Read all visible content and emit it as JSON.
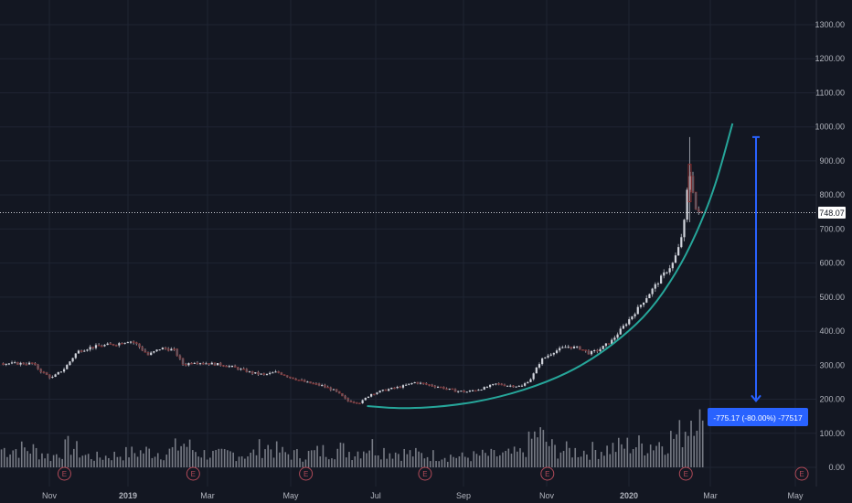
{
  "chart_data": {
    "type": "candlestick",
    "colors": {
      "background": "#131722",
      "grid": "#1f2433",
      "axis_text": "#b2b5be",
      "candle_up": "#d1d4dc",
      "candle_down": "#5d606b",
      "candle_wick": "#9598a1",
      "candle_down_edge": "#8b2b2b",
      "volume_bar": "#8a8d96",
      "curve": "#26a69a",
      "arrow": "#2962ff",
      "label_bg": "#2962ff",
      "last_price_line": "#c9cbd2",
      "earnings_marker": "#b04a58"
    },
    "y_axis": {
      "ticks": [
        "0.00",
        "100.00",
        "200.00",
        "300.00",
        "400.00",
        "500.00",
        "600.00",
        "700.00",
        "800.00",
        "900.00",
        "1000.00",
        "1100.00",
        "1200.00",
        "1300.00"
      ],
      "range": [
        0,
        1300
      ]
    },
    "x_axis": {
      "ticks": [
        "Nov",
        "2019",
        "Mar",
        "May",
        "Jul",
        "Sep",
        "Nov",
        "2020",
        "Mar",
        "May"
      ]
    },
    "last_price": "748.07",
    "last_price_value": 748.07,
    "measure_label": "-775.17 (-80.00%) -77517",
    "measure": {
      "from": 970,
      "to": 195
    },
    "parabolic_curve": [
      {
        "t": 10.4,
        "y": 180
      },
      {
        "t": 11.5,
        "y": 172
      },
      {
        "t": 13.0,
        "y": 180
      },
      {
        "t": 14.5,
        "y": 205
      },
      {
        "t": 16.0,
        "y": 250
      },
      {
        "t": 17.2,
        "y": 305
      },
      {
        "t": 18.3,
        "y": 380
      },
      {
        "t": 19.2,
        "y": 460
      },
      {
        "t": 20.0,
        "y": 570
      },
      {
        "t": 20.6,
        "y": 680
      },
      {
        "t": 21.2,
        "y": 820
      },
      {
        "t": 21.75,
        "y": 1010
      }
    ],
    "price_series": [
      {
        "t": 0.0,
        "p": 305
      },
      {
        "t": 0.3,
        "p": 280
      },
      {
        "t": 0.6,
        "p": 262
      },
      {
        "t": 1.0,
        "p": 290
      },
      {
        "t": 1.4,
        "p": 340
      },
      {
        "t": 1.8,
        "p": 352
      },
      {
        "t": 2.2,
        "p": 358
      },
      {
        "t": 2.6,
        "p": 362
      },
      {
        "t": 3.0,
        "p": 372
      },
      {
        "t": 3.2,
        "p": 365
      },
      {
        "t": 3.6,
        "p": 330
      },
      {
        "t": 4.0,
        "p": 350
      },
      {
        "t": 4.4,
        "p": 345
      },
      {
        "t": 4.7,
        "p": 300
      },
      {
        "t": 5.0,
        "p": 310
      },
      {
        "t": 5.5,
        "p": 305
      },
      {
        "t": 6.0,
        "p": 300
      },
      {
        "t": 6.4,
        "p": 290
      },
      {
        "t": 6.8,
        "p": 278
      },
      {
        "t": 7.2,
        "p": 272
      },
      {
        "t": 7.6,
        "p": 280
      },
      {
        "t": 8.0,
        "p": 265
      },
      {
        "t": 8.5,
        "p": 250
      },
      {
        "t": 9.0,
        "p": 240
      },
      {
        "t": 9.4,
        "p": 225
      },
      {
        "t": 9.8,
        "p": 195
      },
      {
        "t": 10.2,
        "p": 190
      },
      {
        "t": 10.5,
        "p": 215
      },
      {
        "t": 11.0,
        "p": 228
      },
      {
        "t": 11.5,
        "p": 238
      },
      {
        "t": 11.9,
        "p": 250
      },
      {
        "t": 12.3,
        "p": 242
      },
      {
        "t": 12.7,
        "p": 235
      },
      {
        "t": 13.1,
        "p": 225
      },
      {
        "t": 13.5,
        "p": 222
      },
      {
        "t": 14.0,
        "p": 232
      },
      {
        "t": 14.4,
        "p": 245
      },
      {
        "t": 14.8,
        "p": 240
      },
      {
        "t": 15.2,
        "p": 238
      },
      {
        "t": 15.5,
        "p": 262
      },
      {
        "t": 15.8,
        "p": 315
      },
      {
        "t": 16.2,
        "p": 340
      },
      {
        "t": 16.6,
        "p": 355
      },
      {
        "t": 17.0,
        "p": 350
      },
      {
        "t": 17.3,
        "p": 335
      },
      {
        "t": 17.6,
        "p": 345
      },
      {
        "t": 18.0,
        "p": 372
      },
      {
        "t": 18.4,
        "p": 418
      },
      {
        "t": 18.8,
        "p": 465
      },
      {
        "t": 19.2,
        "p": 515
      },
      {
        "t": 19.6,
        "p": 565
      },
      {
        "t": 19.9,
        "p": 600
      },
      {
        "t": 20.1,
        "p": 650
      },
      {
        "t": 20.25,
        "p": 720
      },
      {
        "t": 20.4,
        "p": 870
      },
      {
        "t": 20.5,
        "p": 830
      },
      {
        "t": 20.6,
        "p": 760
      },
      {
        "t": 20.7,
        "p": 745
      },
      {
        "t": 20.8,
        "p": 748
      }
    ],
    "volume_series": [
      {
        "t": 0.0,
        "v": 0.45
      },
      {
        "t": 0.6,
        "v": 0.25
      },
      {
        "t": 1.2,
        "v": 0.55
      },
      {
        "t": 1.6,
        "v": 0.3
      },
      {
        "t": 2.0,
        "v": 0.25
      },
      {
        "t": 2.6,
        "v": 0.3
      },
      {
        "t": 3.0,
        "v": 0.35
      },
      {
        "t": 3.6,
        "v": 0.4
      },
      {
        "t": 4.2,
        "v": 0.35
      },
      {
        "t": 4.7,
        "v": 0.6
      },
      {
        "t": 5.2,
        "v": 0.35
      },
      {
        "t": 5.8,
        "v": 0.3
      },
      {
        "t": 6.2,
        "v": 0.35
      },
      {
        "t": 6.8,
        "v": 0.3
      },
      {
        "t": 7.2,
        "v": 0.55
      },
      {
        "t": 7.8,
        "v": 0.35
      },
      {
        "t": 8.4,
        "v": 0.3
      },
      {
        "t": 9.0,
        "v": 0.4
      },
      {
        "t": 9.6,
        "v": 0.45
      },
      {
        "t": 10.0,
        "v": 0.35
      },
      {
        "t": 10.5,
        "v": 0.55
      },
      {
        "t": 11.0,
        "v": 0.4
      },
      {
        "t": 11.6,
        "v": 0.35
      },
      {
        "t": 12.2,
        "v": 0.3
      },
      {
        "t": 12.8,
        "v": 0.3
      },
      {
        "t": 13.4,
        "v": 0.25
      },
      {
        "t": 14.0,
        "v": 0.3
      },
      {
        "t": 14.6,
        "v": 0.3
      },
      {
        "t": 15.2,
        "v": 0.35
      },
      {
        "t": 15.7,
        "v": 0.85
      },
      {
        "t": 16.2,
        "v": 0.45
      },
      {
        "t": 16.8,
        "v": 0.4
      },
      {
        "t": 17.2,
        "v": 0.4
      },
      {
        "t": 17.8,
        "v": 0.45
      },
      {
        "t": 18.2,
        "v": 0.5
      },
      {
        "t": 18.6,
        "v": 0.55
      },
      {
        "t": 19.0,
        "v": 0.55
      },
      {
        "t": 19.4,
        "v": 0.6
      },
      {
        "t": 19.8,
        "v": 0.7
      },
      {
        "t": 20.1,
        "v": 0.8
      },
      {
        "t": 20.3,
        "v": 1.0
      },
      {
        "t": 20.45,
        "v": 1.25
      },
      {
        "t": 20.6,
        "v": 1.8
      },
      {
        "t": 20.75,
        "v": 1.1
      },
      {
        "t": 20.9,
        "v": 0.6
      }
    ],
    "earnings_markers": [
      1,
      5,
      8.5,
      12.2,
      16,
      20.3,
      23.9
    ],
    "earnings_label": "E"
  }
}
